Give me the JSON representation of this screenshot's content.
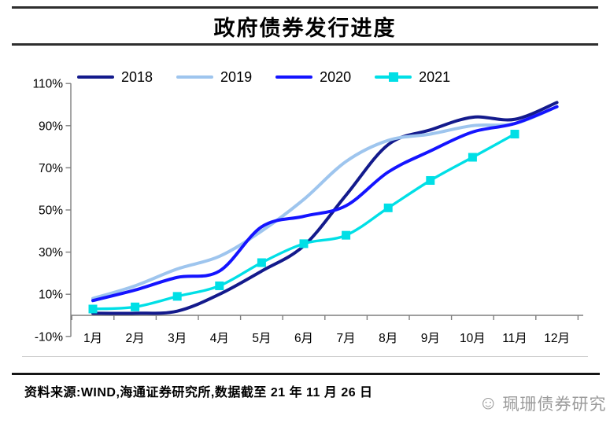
{
  "title": "政府债券发行进度",
  "footer": {
    "source_text": "资料来源:WIND,海通证券研究所,数据截至 21 年 11 月 26 日",
    "watermark": "珮珊债券研究"
  },
  "chart_data": {
    "type": "line",
    "smoothed": true,
    "grid": false,
    "legend_position": "top",
    "categories": [
      "1月",
      "2月",
      "3月",
      "4月",
      "5月",
      "6月",
      "7月",
      "8月",
      "9月",
      "10月",
      "11月",
      "12月"
    ],
    "y_ticks": [
      "110%",
      "90%",
      "70%",
      "50%",
      "30%",
      "10%",
      "-10%"
    ],
    "ylim": [
      -10,
      110
    ],
    "unit": "%",
    "axis_color": "#7f7f7f",
    "series": [
      {
        "name": "2018",
        "color": "#131A8C",
        "values": [
          1,
          1,
          2,
          10,
          21,
          33,
          57,
          81,
          88,
          94,
          93,
          101
        ]
      },
      {
        "name": "2019",
        "color": "#9EC5EE",
        "values": [
          8,
          14,
          22,
          28,
          40,
          55,
          73,
          83,
          86,
          90,
          91,
          99
        ]
      },
      {
        "name": "2020",
        "color": "#1414FF",
        "values": [
          7,
          12,
          18,
          21,
          42,
          47,
          52,
          68,
          78,
          87,
          91,
          99
        ]
      },
      {
        "name": "2021",
        "color": "#00DFE6",
        "values": [
          3,
          4,
          9,
          14,
          25,
          34,
          38,
          51,
          64,
          75,
          86
        ],
        "marker": "square"
      }
    ]
  }
}
